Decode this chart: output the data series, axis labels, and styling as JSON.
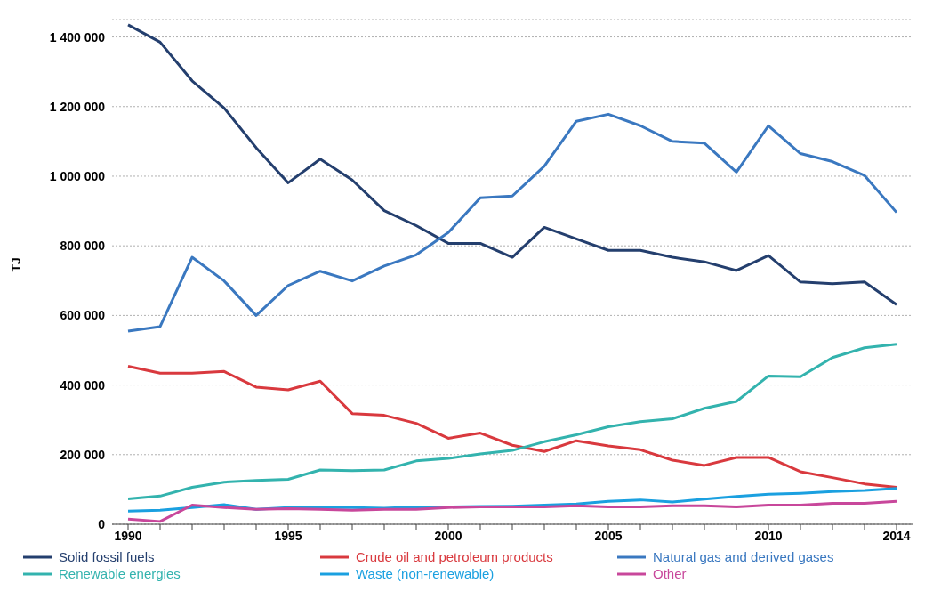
{
  "chart_data": {
    "type": "line",
    "ylabel": "TJ",
    "x": [
      1990,
      1991,
      1992,
      1993,
      1994,
      1995,
      1996,
      1997,
      1998,
      1999,
      2000,
      2001,
      2002,
      2003,
      2004,
      2005,
      2006,
      2007,
      2008,
      2009,
      2010,
      2011,
      2012,
      2013,
      2014
    ],
    "series": [
      {
        "name": "Solid fossil fuels",
        "color": "#243f6e",
        "values": [
          1435000,
          1385000,
          1274000,
          1196000,
          1082000,
          981000,
          1049000,
          989000,
          901000,
          858000,
          807000,
          807000,
          767000,
          853000,
          820000,
          787000,
          787000,
          767000,
          754000,
          729000,
          772000,
          696000,
          691000,
          696000,
          631000
        ]
      },
      {
        "name": "Crude oil and petroleum products",
        "color": "#d9393e",
        "values": [
          454000,
          434000,
          434000,
          439000,
          394000,
          386000,
          411000,
          318000,
          313000,
          290000,
          247000,
          262000,
          227000,
          209000,
          240000,
          225000,
          214000,
          184000,
          169000,
          192000,
          192000,
          151000,
          134000,
          116000,
          106000
        ]
      },
      {
        "name": "Natural gas and derived gases",
        "color": "#3a78c0",
        "values": [
          555000,
          568000,
          767000,
          699000,
          600000,
          686000,
          727000,
          699000,
          742000,
          774000,
          838000,
          938000,
          943000,
          1029000,
          1158000,
          1178000,
          1145000,
          1100000,
          1095000,
          1012000,
          1145000,
          1065000,
          1042000,
          1002000,
          896000
        ]
      },
      {
        "name": "Renewable energies",
        "color": "#33b3ae",
        "values": [
          73000,
          81000,
          106000,
          121000,
          126000,
          129000,
          156000,
          154000,
          156000,
          182000,
          189000,
          202000,
          212000,
          237000,
          257000,
          280000,
          295000,
          303000,
          333000,
          353000,
          426000,
          424000,
          479000,
          507000,
          517000
        ]
      },
      {
        "name": "Waste (non-renewable)",
        "color": "#1aa0e0",
        "values": [
          38000,
          40000,
          48000,
          56000,
          43000,
          48000,
          48000,
          48000,
          46000,
          50000,
          50000,
          51000,
          52000,
          55000,
          58000,
          66000,
          70000,
          64000,
          72000,
          80000,
          86000,
          89000,
          94000,
          97000,
          103000
        ]
      },
      {
        "name": "Other",
        "color": "#c8479b",
        "values": [
          15000,
          8000,
          55000,
          48000,
          43000,
          45000,
          43000,
          40000,
          43000,
          43000,
          48000,
          50000,
          50000,
          50000,
          53000,
          50000,
          50000,
          53000,
          53000,
          50000,
          55000,
          55000,
          60000,
          60000,
          66000
        ]
      }
    ],
    "xlim": [
      1989.5,
      2014.5
    ],
    "xticks": [
      1990,
      {
        "value": 1991,
        "label": null
      },
      {
        "value": 1992,
        "label": null
      },
      {
        "value": 1993,
        "label": null
      },
      {
        "value": 1994,
        "label": null
      },
      1995,
      {
        "value": 1996,
        "label": null
      },
      {
        "value": 1997,
        "label": null
      },
      {
        "value": 1998,
        "label": null
      },
      {
        "value": 1999,
        "label": null
      },
      2000,
      {
        "value": 2001,
        "label": null
      },
      {
        "value": 2002,
        "label": null
      },
      {
        "value": 2003,
        "label": null
      },
      {
        "value": 2004,
        "label": null
      },
      2005,
      {
        "value": 2006,
        "label": null
      },
      {
        "value": 2007,
        "label": null
      },
      {
        "value": 2008,
        "label": null
      },
      {
        "value": 2009,
        "label": null
      },
      2010,
      {
        "value": 2011,
        "label": null
      },
      {
        "value": 2012,
        "label": null
      },
      {
        "value": 2013,
        "label": null
      },
      2014
    ],
    "ylim": [
      0,
      1450000
    ],
    "yticks": [
      0,
      {
        "value": 200000,
        "label": "200 000"
      },
      {
        "value": 400000,
        "label": "400 000"
      },
      {
        "value": 600000,
        "label": "600 000"
      },
      {
        "value": 800000,
        "label": "800 000"
      },
      {
        "value": 1000000,
        "label": "1 000 000"
      },
      {
        "value": 1200000,
        "label": "1 200 000"
      },
      {
        "value": 1400000,
        "label": "1 400 000"
      }
    ],
    "grid": "y",
    "legend": "bottom",
    "marker": "none",
    "line_style": "solid"
  }
}
